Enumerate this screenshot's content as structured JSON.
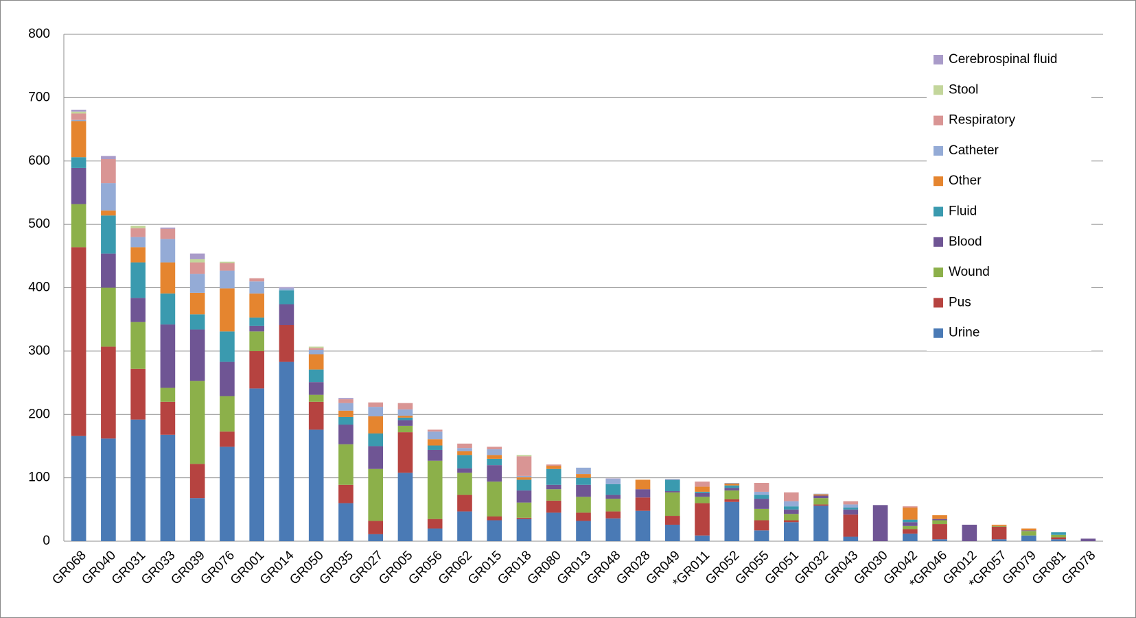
{
  "chart_data": {
    "type": "stacked-bar",
    "categories": [
      "GR068",
      "GR040",
      "GR031",
      "GR033",
      "GR039",
      "GR076",
      "GR001",
      "GR014",
      "GR050",
      "GR035",
      "GR027",
      "GR005",
      "GR056",
      "GR062",
      "GR015",
      "GR018",
      "GR080",
      "GR013",
      "GR048",
      "GR028",
      "GR049",
      "*GR011",
      "GR052",
      "GR055",
      "GR051",
      "GR032",
      "GR043",
      "GR030",
      "GR042",
      "*GR046",
      "GR012",
      "*GR057",
      "GR079",
      "GR081",
      "GR078"
    ],
    "series": [
      {
        "name": "Urine",
        "color": "#4a7ab5",
        "values": [
          166,
          162,
          192,
          168,
          68,
          149,
          241,
          283,
          176,
          60,
          11,
          108,
          20,
          47,
          33,
          35,
          45,
          32,
          36,
          48,
          26,
          9,
          62,
          17,
          30,
          56,
          7,
          0,
          12,
          3,
          0,
          3,
          9,
          3,
          0
        ]
      },
      {
        "name": "Pus",
        "color": "#b64340",
        "values": [
          298,
          145,
          80,
          52,
          54,
          24,
          59,
          58,
          44,
          29,
          21,
          64,
          15,
          26,
          6,
          2,
          19,
          13,
          11,
          21,
          14,
          51,
          4,
          16,
          3,
          2,
          35,
          0,
          7,
          24,
          0,
          20,
          0,
          3,
          0
        ]
      },
      {
        "name": "Wound",
        "color": "#8cb04a",
        "values": [
          68,
          93,
          74,
          22,
          131,
          56,
          31,
          0,
          11,
          64,
          82,
          10,
          92,
          35,
          55,
          24,
          18,
          25,
          20,
          0,
          37,
          10,
          14,
          18,
          10,
          10,
          0,
          0,
          5,
          6,
          0,
          1,
          7,
          4,
          0
        ]
      },
      {
        "name": "Blood",
        "color": "#6f5594",
        "values": [
          57,
          54,
          38,
          100,
          81,
          54,
          9,
          33,
          20,
          31,
          36,
          9,
          17,
          7,
          26,
          19,
          7,
          19,
          6,
          13,
          2,
          6,
          4,
          16,
          7,
          4,
          8,
          57,
          6,
          2,
          26,
          0,
          1,
          0,
          4
        ]
      },
      {
        "name": "Fluid",
        "color": "#3a9aaf",
        "values": [
          17,
          60,
          56,
          49,
          24,
          48,
          13,
          22,
          20,
          12,
          20,
          4,
          7,
          21,
          10,
          17,
          25,
          11,
          17,
          0,
          18,
          2,
          4,
          6,
          5,
          0,
          3,
          0,
          4,
          0,
          0,
          0,
          0,
          4,
          0
        ]
      },
      {
        "name": "Other",
        "color": "#e5852f",
        "values": [
          57,
          8,
          24,
          49,
          34,
          68,
          38,
          0,
          24,
          10,
          27,
          3,
          10,
          6,
          6,
          4,
          5,
          6,
          0,
          15,
          0,
          8,
          3,
          0,
          0,
          2,
          0,
          0,
          19,
          6,
          0,
          2,
          3,
          0,
          0
        ]
      },
      {
        "name": "Catheter",
        "color": "#94abd6",
        "values": [
          2,
          43,
          16,
          37,
          30,
          28,
          19,
          3,
          7,
          12,
          15,
          10,
          12,
          5,
          9,
          2,
          0,
          10,
          8,
          0,
          0,
          0,
          1,
          5,
          8,
          1,
          5,
          0,
          0,
          0,
          0,
          0,
          0,
          0,
          0
        ]
      },
      {
        "name": "Respiratory",
        "color": "#d99594",
        "values": [
          10,
          38,
          14,
          16,
          18,
          12,
          5,
          0,
          3,
          6,
          7,
          10,
          3,
          7,
          4,
          31,
          2,
          0,
          0,
          0,
          0,
          8,
          0,
          14,
          14,
          0,
          5,
          0,
          2,
          0,
          0,
          0,
          0,
          0,
          0
        ]
      },
      {
        "name": "Stool",
        "color": "#c3d69b",
        "values": [
          3,
          0,
          4,
          0,
          5,
          2,
          0,
          0,
          2,
          0,
          0,
          0,
          0,
          0,
          0,
          2,
          0,
          0,
          0,
          0,
          0,
          0,
          0,
          0,
          0,
          0,
          0,
          0,
          0,
          0,
          0,
          0,
          0,
          0,
          0
        ]
      },
      {
        "name": "Cerebrospinal fluid",
        "color": "#a99bc9",
        "values": [
          3,
          5,
          0,
          2,
          9,
          0,
          0,
          2,
          0,
          2,
          0,
          0,
          0,
          0,
          0,
          0,
          0,
          0,
          1,
          0,
          1,
          0,
          0,
          0,
          0,
          0,
          0,
          0,
          0,
          0,
          0,
          0,
          0,
          0,
          0
        ]
      }
    ],
    "ylim": [
      0,
      800
    ],
    "yticks": [
      0,
      100,
      200,
      300,
      400,
      500,
      600,
      700,
      800
    ],
    "grid": true,
    "legend": "top-right"
  }
}
